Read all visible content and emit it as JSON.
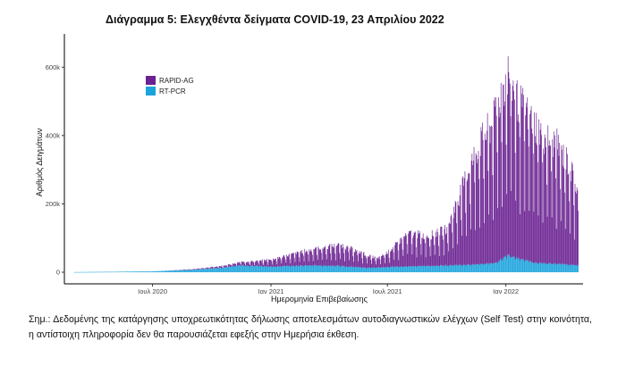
{
  "chart_data": {
    "type": "bar",
    "stacked": true,
    "title": "Διάγραμμα 5: Ελεγχθέντα δείγματα COVID-19, 23 Απριλίου 2022",
    "xlabel": "Ημερομηνία Επιβεβαίωσης",
    "ylabel": "Αριθμός Δειγμάτων",
    "ylim": [
      0,
      700000
    ],
    "yticks": [
      0,
      200000,
      400000,
      600000
    ],
    "ytick_labels": [
      "0",
      "200k",
      "400k",
      "600k"
    ],
    "xlim": [
      "2020-02-15",
      "2022-05-01"
    ],
    "xticks": [
      "2020-07-01",
      "2021-01-01",
      "2021-07-01",
      "2022-01-01"
    ],
    "xtick_labels": [
      "Ιουλ 2020",
      "Ιαν 2021",
      "Ιουλ 2021",
      "Ιαν 2022"
    ],
    "grid": false,
    "legend_position": "top-left",
    "series": [
      {
        "name": "RAPID-AG",
        "color": "#6a2191",
        "points": [
          [
            "2020-07-15",
            0
          ],
          [
            "2020-09-15",
            3000
          ],
          [
            "2020-11-01",
            8000
          ],
          [
            "2020-12-15",
            18000
          ],
          [
            "2021-01-15",
            30000
          ],
          [
            "2021-02-15",
            45000
          ],
          [
            "2021-03-20",
            60000
          ],
          [
            "2021-04-20",
            70000
          ],
          [
            "2021-05-20",
            50000
          ],
          [
            "2021-06-15",
            30000
          ],
          [
            "2021-07-05",
            55000
          ],
          [
            "2021-08-01",
            110000
          ],
          [
            "2021-09-01",
            100000
          ],
          [
            "2021-10-01",
            120000
          ],
          [
            "2021-11-01",
            300000
          ],
          [
            "2021-11-20",
            400000
          ],
          [
            "2021-12-10",
            460000
          ],
          [
            "2021-12-25",
            560000
          ],
          [
            "2022-01-05",
            610000
          ],
          [
            "2022-01-20",
            520000
          ],
          [
            "2022-02-10",
            480000
          ],
          [
            "2022-03-01",
            420000
          ],
          [
            "2022-03-20",
            400000
          ],
          [
            "2022-04-10",
            330000
          ],
          [
            "2022-04-22",
            240000
          ]
        ]
      },
      {
        "name": "RT-PCR",
        "color": "#1aa3dc",
        "points": [
          [
            "2020-03-01",
            500
          ],
          [
            "2020-05-01",
            1500
          ],
          [
            "2020-07-01",
            3000
          ],
          [
            "2020-09-01",
            8000
          ],
          [
            "2020-10-15",
            14000
          ],
          [
            "2020-11-15",
            22000
          ],
          [
            "2021-01-01",
            18000
          ],
          [
            "2021-03-01",
            22000
          ],
          [
            "2021-04-15",
            20000
          ],
          [
            "2021-06-01",
            14000
          ],
          [
            "2021-07-15",
            18000
          ],
          [
            "2021-09-01",
            20000
          ],
          [
            "2021-11-15",
            25000
          ],
          [
            "2021-12-15",
            30000
          ],
          [
            "2022-01-05",
            55000
          ],
          [
            "2022-01-20",
            45000
          ],
          [
            "2022-02-15",
            30000
          ],
          [
            "2022-03-15",
            28000
          ],
          [
            "2022-04-22",
            22000
          ]
        ]
      }
    ]
  },
  "note": "Σημ.: Δεδομένης της κατάργησης υποχρεωτικότητας δήλωσης αποτελεσμάτων αυτοδιαγνωστικών ελέγχων (Self Test) στην κοινότητα, η αντίστοιχη πληροφορία δεν θα παρουσιάζεται εφεξής στην Ημερήσια έκθεση."
}
